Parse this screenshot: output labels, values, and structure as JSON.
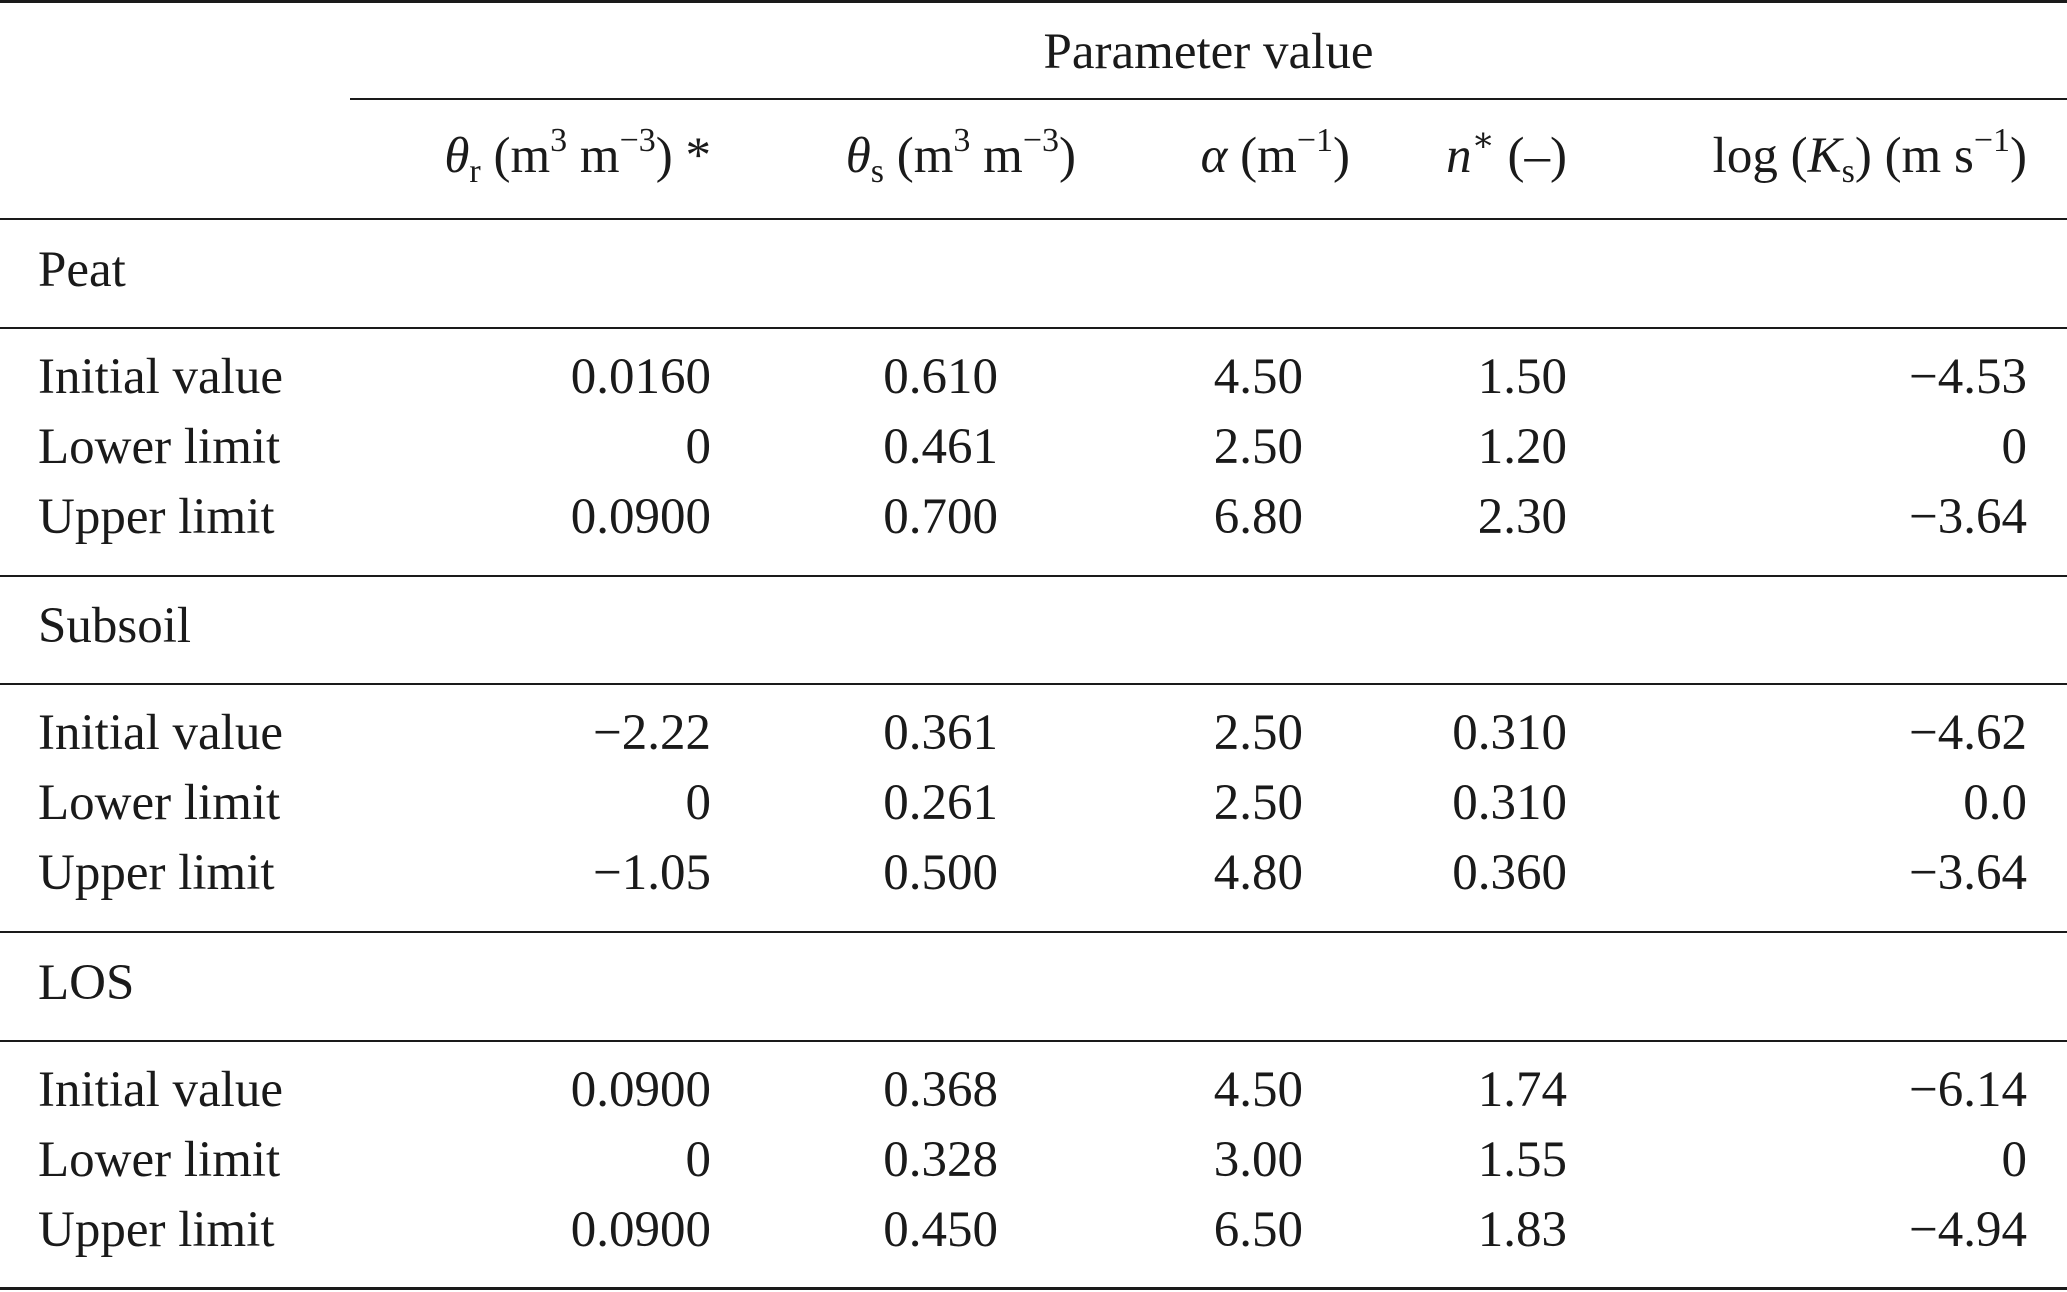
{
  "table": {
    "group_header": "Parameter value",
    "columns": [
      {
        "symbol": "θ",
        "subscript": "r",
        "unit_open": " (m",
        "unit_sup1": "3",
        "unit_mid": " m",
        "unit_sup2": "−3",
        "unit_close": ")",
        "suffix": " *"
      },
      {
        "symbol": "θ",
        "subscript": "s",
        "unit_open": " (m",
        "unit_sup1": "3",
        "unit_mid": " m",
        "unit_sup2": "−3",
        "unit_close": ")"
      },
      {
        "symbol": "α",
        "unit_open": " (m",
        "unit_sup": "−1",
        "unit_close": ")"
      },
      {
        "symbol": "n",
        "symbol_sup": "∗",
        "unit": " (–)"
      },
      {
        "prefix": "log (",
        "symbol": "K",
        "subscript": "s",
        "unit_open": ") (m s",
        "unit_sup": "−1",
        "unit_close": ")"
      }
    ],
    "sections": [
      {
        "name": "Peat",
        "rows": [
          {
            "label": "Initial value",
            "values": [
              "0.0160",
              "0.610",
              "4.50",
              "1.50",
              "−4.53"
            ]
          },
          {
            "label": "Lower limit",
            "values": [
              "0",
              "0.461",
              "2.50",
              "1.20",
              "0"
            ]
          },
          {
            "label": "Upper limit",
            "values": [
              "0.0900",
              "0.700",
              "6.80",
              "2.30",
              "−3.64"
            ]
          }
        ]
      },
      {
        "name": "Subsoil",
        "rows": [
          {
            "label": "Initial value",
            "values": [
              "−2.22",
              "0.361",
              "2.50",
              "0.310",
              "−4.62"
            ]
          },
          {
            "label": "Lower limit",
            "values": [
              "0",
              "0.261",
              "2.50",
              "0.310",
              "0.0"
            ]
          },
          {
            "label": "Upper limit",
            "values": [
              "−1.05",
              "0.500",
              "4.80",
              "0.360",
              "−3.64"
            ]
          }
        ]
      },
      {
        "name": "LOS",
        "rows": [
          {
            "label": "Initial value",
            "values": [
              "0.0900",
              "0.368",
              "4.50",
              "1.74",
              "−6.14"
            ]
          },
          {
            "label": "Lower limit",
            "values": [
              "0",
              "0.328",
              "3.00",
              "1.55",
              "0"
            ]
          },
          {
            "label": "Upper limit",
            "values": [
              "0.0900",
              "0.450",
              "6.50",
              "1.83",
              "−4.94"
            ]
          }
        ]
      }
    ]
  }
}
